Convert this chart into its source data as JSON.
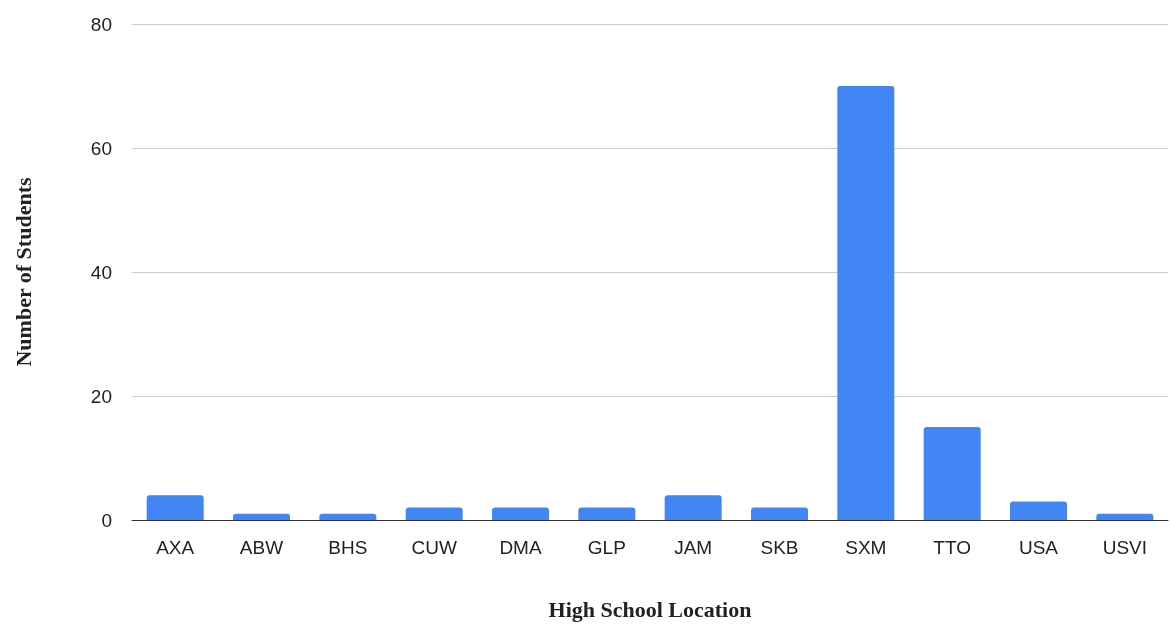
{
  "chart_data": {
    "type": "bar",
    "xlabel": "High School Location",
    "ylabel": "Number of Students",
    "categories": [
      "AXA",
      "ABW",
      "BHS",
      "CUW",
      "DMA",
      "GLP",
      "JAM",
      "SKB",
      "SXM",
      "TTO",
      "USA",
      "USVI"
    ],
    "values": [
      4,
      1,
      1,
      2,
      2,
      2,
      4,
      2,
      70,
      15,
      3,
      1
    ],
    "color": "#4285f4",
    "ylim": [
      0,
      80
    ],
    "yticks": [
      0,
      20,
      40,
      60,
      80
    ],
    "grid": "y"
  }
}
